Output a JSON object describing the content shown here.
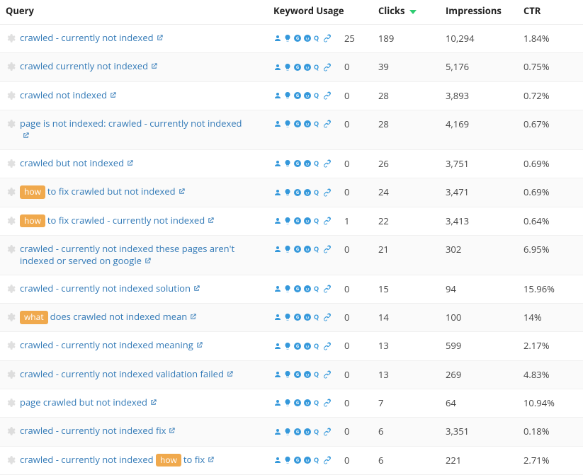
{
  "colors": {
    "link": "#337ab7",
    "tag_bg": "#f0a94d",
    "tag_fg": "#ffffff",
    "sort_caret": "#2ecc71",
    "gear": "#bbbbbb",
    "blue_icon": "#3498db",
    "text": "#333333"
  },
  "columns": {
    "query": "Query",
    "keyword_usage": "Keyword Usage",
    "clicks": "Clicks",
    "impressions": "Impressions",
    "ctr": "CTR"
  },
  "sort": {
    "column": "clicks",
    "direction": "desc"
  },
  "usage_icons": [
    "person",
    "bulb",
    "google",
    "reddit",
    "quora",
    "link"
  ],
  "rows": [
    {
      "parts": [
        {
          "text": "crawled - currently not indexed"
        }
      ],
      "keyword_usage": "25",
      "clicks": "189",
      "impressions": "10,294",
      "ctr": "1.84%"
    },
    {
      "parts": [
        {
          "text": "crawled currently not indexed"
        }
      ],
      "keyword_usage": "0",
      "clicks": "39",
      "impressions": "5,176",
      "ctr": "0.75%"
    },
    {
      "parts": [
        {
          "text": "crawled not indexed"
        }
      ],
      "keyword_usage": "0",
      "clicks": "28",
      "impressions": "3,893",
      "ctr": "0.72%"
    },
    {
      "parts": [
        {
          "text": "page is not indexed: crawled - currently not indexed"
        }
      ],
      "keyword_usage": "0",
      "clicks": "28",
      "impressions": "4,169",
      "ctr": "0.67%"
    },
    {
      "parts": [
        {
          "text": "crawled but not indexed"
        }
      ],
      "keyword_usage": "0",
      "clicks": "26",
      "impressions": "3,751",
      "ctr": "0.69%"
    },
    {
      "parts": [
        {
          "tag": "how"
        },
        {
          "text": "to fix crawled but not indexed"
        }
      ],
      "keyword_usage": "0",
      "clicks": "24",
      "impressions": "3,471",
      "ctr": "0.69%"
    },
    {
      "parts": [
        {
          "tag": "how"
        },
        {
          "text": "to fix crawled - currently not indexed"
        }
      ],
      "keyword_usage": "1",
      "clicks": "22",
      "impressions": "3,413",
      "ctr": "0.64%"
    },
    {
      "parts": [
        {
          "text": "crawled - currently not indexed these pages aren't indexed or served on google"
        }
      ],
      "keyword_usage": "0",
      "clicks": "21",
      "impressions": "302",
      "ctr": "6.95%"
    },
    {
      "parts": [
        {
          "text": "crawled - currently not indexed solution"
        }
      ],
      "keyword_usage": "0",
      "clicks": "15",
      "impressions": "94",
      "ctr": "15.96%"
    },
    {
      "parts": [
        {
          "tag": "what"
        },
        {
          "text": "does crawled not indexed mean"
        }
      ],
      "keyword_usage": "0",
      "clicks": "14",
      "impressions": "100",
      "ctr": "14%"
    },
    {
      "parts": [
        {
          "text": "crawled - currently not indexed meaning"
        }
      ],
      "keyword_usage": "0",
      "clicks": "13",
      "impressions": "599",
      "ctr": "2.17%"
    },
    {
      "parts": [
        {
          "text": "crawled - currently not indexed validation failed"
        }
      ],
      "keyword_usage": "0",
      "clicks": "13",
      "impressions": "269",
      "ctr": "4.83%"
    },
    {
      "parts": [
        {
          "text": "page crawled but not indexed"
        }
      ],
      "keyword_usage": "0",
      "clicks": "7",
      "impressions": "64",
      "ctr": "10.94%"
    },
    {
      "parts": [
        {
          "text": "crawled - currently not indexed fix"
        }
      ],
      "keyword_usage": "0",
      "clicks": "6",
      "impressions": "3,351",
      "ctr": "0.18%"
    },
    {
      "parts": [
        {
          "text": "crawled - currently not indexed"
        },
        {
          "tag": "how"
        },
        {
          "text": "to fix"
        }
      ],
      "keyword_usage": "0",
      "clicks": "6",
      "impressions": "221",
      "ctr": "2.71%"
    }
  ]
}
